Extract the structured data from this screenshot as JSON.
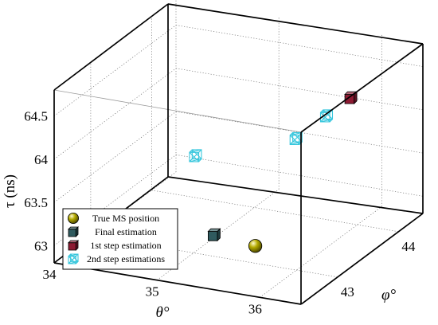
{
  "chart_data": {
    "type": "scatter",
    "projection": "3d",
    "xlabel": "θ°",
    "ylabel": "φ°",
    "zlabel": "τ (ns)",
    "x_ticks": [
      "34",
      "35",
      "36"
    ],
    "y_ticks": [
      "43",
      "44"
    ],
    "z_ticks": [
      "63",
      "63.5",
      "64",
      "64.5"
    ],
    "xlim": [
      34,
      36.4
    ],
    "ylim": [
      42.4,
      44.4
    ],
    "zlim": [
      62.8,
      64.8
    ],
    "grid": true,
    "legend_position": "bottom-left",
    "series": [
      {
        "name": "True MS position",
        "marker": "sphere",
        "color": "#b4aa00",
        "points": [
          {
            "x": 35.6,
            "y": 43.0,
            "z": 63.0
          }
        ]
      },
      {
        "name": "Final estimation",
        "marker": "cube",
        "color": "#2f5a5e",
        "points": [
          {
            "x": 35.2,
            "y": 43.0,
            "z": 63.05
          }
        ]
      },
      {
        "name": "1st step estimation",
        "marker": "cube",
        "color": "#8c1a32",
        "points": [
          {
            "x": 35.7,
            "y": 44.4,
            "z": 64.0
          }
        ]
      },
      {
        "name": "2nd step estimations",
        "marker": "wire-cube",
        "color": "#38c7dd",
        "points": [
          {
            "x": 34.9,
            "y": 43.2,
            "z": 63.8
          },
          {
            "x": 35.7,
            "y": 43.5,
            "z": 64.0
          },
          {
            "x": 35.7,
            "y": 44.0,
            "z": 64.0
          }
        ]
      }
    ]
  }
}
